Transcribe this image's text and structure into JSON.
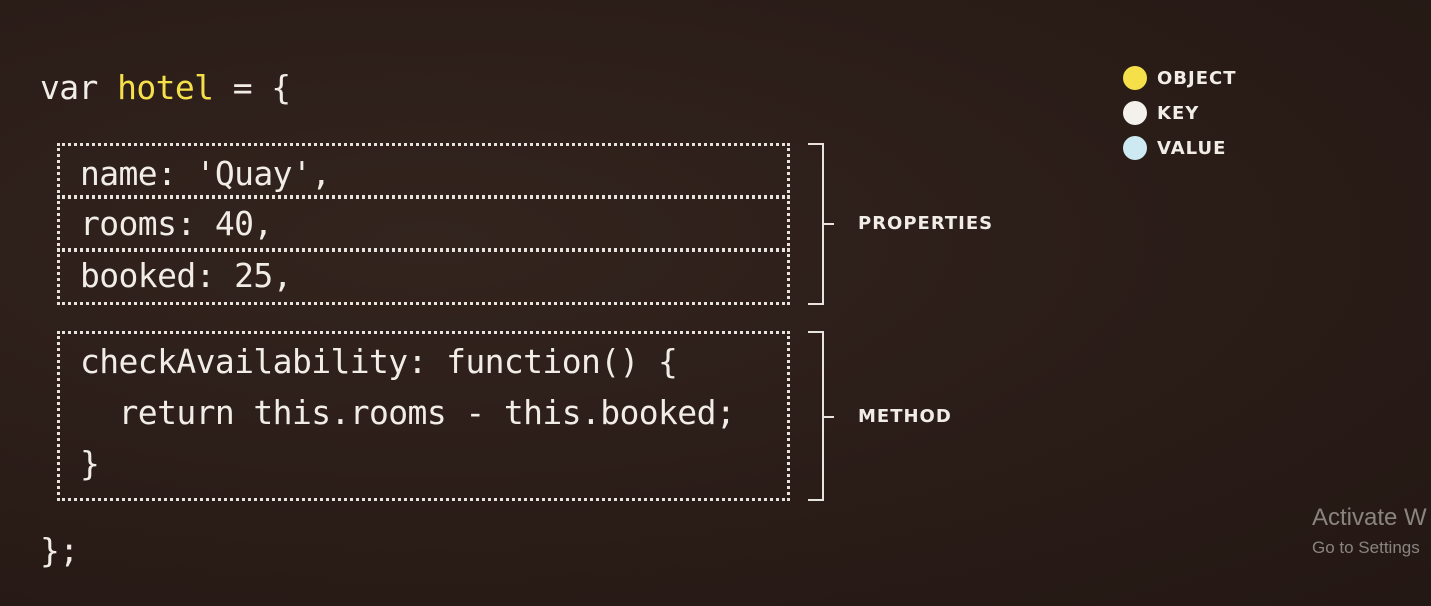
{
  "code": {
    "decl_keyword": "var",
    "object_name": "hotel",
    "decl_rest": "= {",
    "properties": [
      {
        "line": "name: 'Quay',"
      },
      {
        "line": "rooms: 40,"
      },
      {
        "line": "booked: 25,"
      }
    ],
    "method_lines": [
      "checkAvailability: function() {",
      "  return this.rooms - this.booked;",
      "}"
    ],
    "closing": "};"
  },
  "annotations": {
    "properties_label": "PROPERTIES",
    "method_label": "METHOD"
  },
  "legend": [
    {
      "label": "OBJECT",
      "color": "#f6e04a"
    },
    {
      "label": "KEY",
      "color": "#f4f1ec"
    },
    {
      "label": "VALUE",
      "color": "#cdeaf3"
    }
  ],
  "watermark": {
    "title": "Activate W",
    "subtitle": "Go to Settings"
  }
}
